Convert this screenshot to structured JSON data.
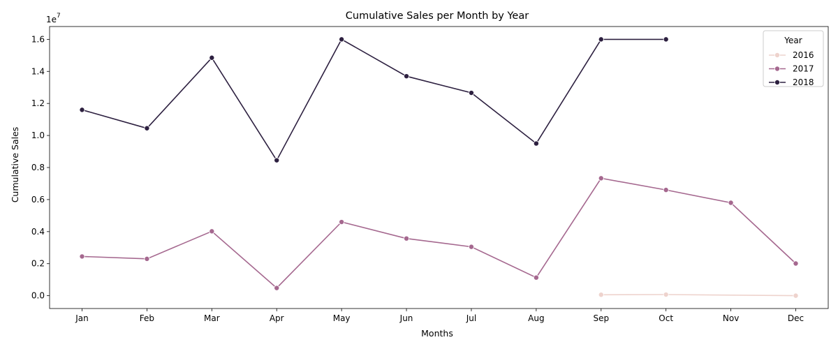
{
  "chart_data": {
    "type": "line",
    "title": "Cumulative Sales per Month by Year",
    "xlabel": "Months",
    "ylabel": "Cumulative Sales",
    "y_scale_label": "1e7",
    "y_scale_factor": 10000000,
    "categories": [
      "Jan",
      "Feb",
      "Mar",
      "Apr",
      "May",
      "Jun",
      "Jul",
      "Aug",
      "Sep",
      "Oct",
      "Nov",
      "Dec"
    ],
    "ylim": [
      -800000,
      16800000
    ],
    "yticks": [
      0,
      2000000,
      4000000,
      6000000,
      8000000,
      10000000,
      12000000,
      14000000,
      16000000
    ],
    "ytick_labels": [
      "0.0",
      "0.2",
      "0.4",
      "0.6",
      "0.8",
      "1.0",
      "1.2",
      "1.4",
      "1.6"
    ],
    "grid": false,
    "legend": {
      "title": "Year",
      "placement": "top-right"
    },
    "series": [
      {
        "name": "2016",
        "color": "#eed3cd",
        "values": [
          null,
          null,
          null,
          null,
          null,
          null,
          null,
          null,
          60000,
          70000,
          null,
          0
        ]
      },
      {
        "name": "2017",
        "color": "#a5688f",
        "values": [
          2450000,
          2300000,
          4020000,
          480000,
          4600000,
          3570000,
          3050000,
          1130000,
          7330000,
          6600000,
          5800000,
          2010000
        ]
      },
      {
        "name": "2018",
        "color": "#2d2040",
        "values": [
          11600000,
          10450000,
          14850000,
          8450000,
          16000000,
          13700000,
          12660000,
          9500000,
          16000000,
          16000000,
          null,
          null
        ]
      }
    ]
  }
}
